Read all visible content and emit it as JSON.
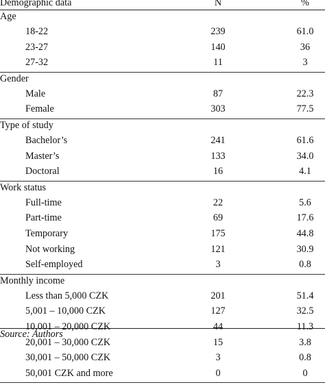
{
  "header": {
    "label": "Demographic data",
    "n": "N",
    "pct": "%"
  },
  "sections": [
    {
      "title": "Age",
      "rows": [
        {
          "label": "18-22",
          "n": "239",
          "pct": "61.0"
        },
        {
          "label": "23-27",
          "n": "140",
          "pct": "36"
        },
        {
          "label": "27-32",
          "n": "11",
          "pct": "3"
        }
      ]
    },
    {
      "title": "Gender",
      "rows": [
        {
          "label": "Male",
          "n": "87",
          "pct": "22.3"
        },
        {
          "label": "Female",
          "n": "303",
          "pct": "77.5"
        }
      ]
    },
    {
      "title": "Type of study",
      "rows": [
        {
          "label": "Bachelor’s",
          "n": "241",
          "pct": "61.6"
        },
        {
          "label": "Master’s",
          "n": "133",
          "pct": "34.0"
        },
        {
          "label": "Doctoral",
          "n": "16",
          "pct": "4.1"
        }
      ]
    },
    {
      "title": "Work status",
      "rows": [
        {
          "label": "Full-time",
          "n": "22",
          "pct": "5.6"
        },
        {
          "label": "Part-time",
          "n": "69",
          "pct": "17.6"
        },
        {
          "label": "Temporary",
          "n": "175",
          "pct": "44.8"
        },
        {
          "label": "Not working",
          "n": "121",
          "pct": "30.9"
        },
        {
          "label": "Self-employed",
          "n": "3",
          "pct": "0.8"
        }
      ]
    },
    {
      "title": "Monthly income",
      "rows": [
        {
          "label": "Less than 5,000 CZK",
          "n": "201",
          "pct": "51.4"
        },
        {
          "label": "5,001 – 10,000 CZK",
          "n": "127",
          "pct": "32.5"
        },
        {
          "label": "10,001 – 20,000 CZK",
          "n": "44",
          "pct": "11.3"
        },
        {
          "label": "20,001 – 30,000 CZK",
          "n": "15",
          "pct": "3.8"
        },
        {
          "label": "30,001 – 50,000 CZK",
          "n": "3",
          "pct": "0.8"
        },
        {
          "label": "50,001 CZK and more",
          "n": "0",
          "pct": "0"
        }
      ]
    }
  ],
  "source": "Source: Authors"
}
